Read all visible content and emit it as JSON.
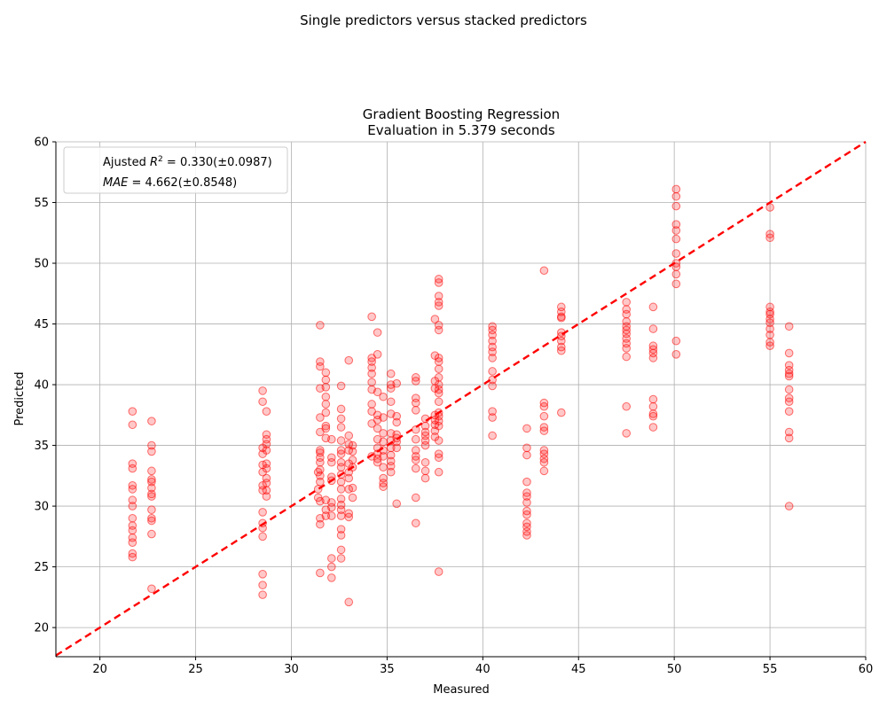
{
  "figure": {
    "suptitle": "Single predictors versus stacked predictors"
  },
  "chart_data": {
    "type": "scatter",
    "title_line1": "Gradient Boosting Regression",
    "title_line2": "Evaluation in 5.379 seconds",
    "xlabel": "Measured",
    "ylabel": "Predicted",
    "xlim": [
      17.7,
      60
    ],
    "ylim": [
      17.6,
      60
    ],
    "xticks": [
      20,
      25,
      30,
      35,
      40,
      45,
      50,
      55,
      60
    ],
    "yticks": [
      20,
      25,
      30,
      35,
      40,
      45,
      50,
      55,
      60
    ],
    "grid": true,
    "legend_position": "upper-left",
    "legend": {
      "line1_prefix": "Ajusted ",
      "line1_math": "R",
      "line1_sup": "2",
      "line1_rest": " = 0.330(±0.0987)",
      "line2_math": "MAE",
      "line2_rest": " = 4.662(±0.8548)"
    },
    "point_color": "#ff0000",
    "reference_line_color": "#ff0000",
    "reference_line": "y = x (dashed)",
    "points": [
      [
        21.7,
        37.8
      ],
      [
        21.7,
        36.7
      ],
      [
        21.7,
        33.5
      ],
      [
        21.7,
        33.1
      ],
      [
        21.7,
        31.7
      ],
      [
        21.7,
        31.4
      ],
      [
        21.7,
        30.5
      ],
      [
        21.7,
        30.0
      ],
      [
        21.7,
        29.0
      ],
      [
        21.7,
        28.4
      ],
      [
        21.7,
        28.0
      ],
      [
        21.7,
        27.4
      ],
      [
        21.7,
        27.0
      ],
      [
        21.7,
        26.1
      ],
      [
        21.7,
        25.8
      ],
      [
        22.7,
        37.0
      ],
      [
        22.7,
        35.0
      ],
      [
        22.7,
        34.5
      ],
      [
        22.7,
        32.9
      ],
      [
        22.7,
        32.2
      ],
      [
        22.7,
        32.0
      ],
      [
        22.7,
        31.5
      ],
      [
        22.7,
        31.0
      ],
      [
        22.7,
        30.8
      ],
      [
        22.7,
        29.7
      ],
      [
        22.7,
        29.0
      ],
      [
        22.7,
        28.8
      ],
      [
        22.7,
        27.7
      ],
      [
        22.7,
        23.2
      ],
      [
        28.5,
        39.5
      ],
      [
        28.5,
        38.6
      ],
      [
        28.5,
        34.8
      ],
      [
        28.5,
        34.3
      ],
      [
        28.5,
        33.4
      ],
      [
        28.5,
        32.8
      ],
      [
        28.5,
        31.7
      ],
      [
        28.5,
        31.3
      ],
      [
        28.5,
        29.5
      ],
      [
        28.5,
        28.6
      ],
      [
        28.5,
        28.2
      ],
      [
        28.5,
        27.5
      ],
      [
        28.5,
        24.4
      ],
      [
        28.5,
        23.5
      ],
      [
        28.5,
        22.7
      ],
      [
        28.7,
        37.8
      ],
      [
        28.7,
        35.9
      ],
      [
        28.7,
        35.5
      ],
      [
        28.7,
        35.1
      ],
      [
        28.7,
        34.6
      ],
      [
        28.7,
        33.5
      ],
      [
        28.7,
        33.1
      ],
      [
        28.7,
        32.3
      ],
      [
        28.7,
        31.9
      ],
      [
        28.7,
        31.3
      ],
      [
        28.7,
        30.8
      ],
      [
        31.4,
        32.8
      ],
      [
        31.4,
        31.4
      ],
      [
        31.4,
        30.7
      ],
      [
        31.5,
        44.9
      ],
      [
        31.5,
        41.9
      ],
      [
        31.5,
        41.5
      ],
      [
        31.5,
        39.7
      ],
      [
        31.5,
        37.3
      ],
      [
        31.5,
        36.1
      ],
      [
        31.5,
        34.6
      ],
      [
        31.5,
        34.4
      ],
      [
        31.5,
        34.0
      ],
      [
        31.5,
        33.6
      ],
      [
        31.5,
        33.0
      ],
      [
        31.5,
        32.5
      ],
      [
        31.5,
        32.0
      ],
      [
        31.5,
        30.4
      ],
      [
        31.5,
        29.0
      ],
      [
        31.5,
        28.5
      ],
      [
        31.5,
        24.5
      ],
      [
        31.8,
        41.0
      ],
      [
        31.8,
        40.4
      ],
      [
        31.8,
        39.8
      ],
      [
        31.8,
        39.0
      ],
      [
        31.8,
        38.4
      ],
      [
        31.8,
        37.7
      ],
      [
        31.8,
        36.6
      ],
      [
        31.8,
        36.4
      ],
      [
        31.8,
        35.6
      ],
      [
        31.8,
        30.5
      ],
      [
        31.8,
        29.7
      ],
      [
        31.8,
        29.2
      ],
      [
        32.1,
        35.5
      ],
      [
        32.1,
        34.0
      ],
      [
        32.1,
        33.6
      ],
      [
        32.1,
        32.4
      ],
      [
        32.1,
        32.1
      ],
      [
        32.1,
        30.3
      ],
      [
        32.1,
        29.9
      ],
      [
        32.1,
        29.2
      ],
      [
        32.1,
        25.7
      ],
      [
        32.1,
        25.0
      ],
      [
        32.1,
        24.1
      ],
      [
        32.6,
        39.9
      ],
      [
        32.6,
        38.0
      ],
      [
        32.6,
        37.2
      ],
      [
        32.6,
        36.5
      ],
      [
        32.6,
        35.4
      ],
      [
        32.6,
        34.6
      ],
      [
        32.6,
        34.3
      ],
      [
        32.6,
        33.6
      ],
      [
        32.6,
        33.2
      ],
      [
        32.6,
        32.6
      ],
      [
        32.6,
        32.0
      ],
      [
        32.6,
        31.4
      ],
      [
        32.6,
        30.6
      ],
      [
        32.6,
        30.1
      ],
      [
        32.6,
        29.7
      ],
      [
        32.6,
        29.2
      ],
      [
        32.6,
        28.1
      ],
      [
        32.6,
        27.6
      ],
      [
        32.6,
        26.4
      ],
      [
        32.6,
        25.7
      ],
      [
        33.0,
        42.0
      ],
      [
        33.0,
        35.8
      ],
      [
        33.0,
        35.1
      ],
      [
        33.0,
        34.6
      ],
      [
        33.0,
        33.5
      ],
      [
        33.0,
        32.8
      ],
      [
        33.0,
        32.3
      ],
      [
        33.0,
        31.4
      ],
      [
        33.0,
        29.4
      ],
      [
        33.0,
        29.1
      ],
      [
        33.0,
        22.1
      ],
      [
        33.2,
        35.0
      ],
      [
        33.2,
        34.5
      ],
      [
        33.2,
        33.8
      ],
      [
        33.2,
        33.2
      ],
      [
        33.2,
        31.5
      ],
      [
        33.2,
        30.7
      ],
      [
        34.2,
        45.6
      ],
      [
        34.2,
        42.2
      ],
      [
        34.2,
        41.9
      ],
      [
        34.2,
        41.4
      ],
      [
        34.2,
        40.9
      ],
      [
        34.2,
        40.2
      ],
      [
        34.2,
        39.6
      ],
      [
        34.2,
        38.4
      ],
      [
        34.2,
        37.8
      ],
      [
        34.2,
        36.8
      ],
      [
        34.2,
        34.1
      ],
      [
        34.5,
        44.3
      ],
      [
        34.5,
        42.5
      ],
      [
        34.5,
        39.4
      ],
      [
        34.5,
        37.5
      ],
      [
        34.5,
        37.1
      ],
      [
        34.5,
        36.4
      ],
      [
        34.5,
        35.5
      ],
      [
        34.5,
        34.8
      ],
      [
        34.5,
        34.3
      ],
      [
        34.5,
        33.9
      ],
      [
        34.5,
        33.6
      ],
      [
        34.8,
        39.0
      ],
      [
        34.8,
        37.3
      ],
      [
        34.8,
        36.0
      ],
      [
        34.8,
        35.3
      ],
      [
        34.8,
        34.6
      ],
      [
        34.8,
        34.1
      ],
      [
        34.8,
        33.2
      ],
      [
        34.8,
        32.3
      ],
      [
        34.8,
        31.9
      ],
      [
        34.8,
        31.6
      ],
      [
        35.2,
        40.9
      ],
      [
        35.2,
        40.0
      ],
      [
        35.2,
        39.7
      ],
      [
        35.2,
        38.6
      ],
      [
        35.2,
        37.6
      ],
      [
        35.2,
        36.0
      ],
      [
        35.2,
        35.4
      ],
      [
        35.2,
        34.8
      ],
      [
        35.2,
        34.2
      ],
      [
        35.2,
        33.7
      ],
      [
        35.2,
        33.3
      ],
      [
        35.2,
        32.8
      ],
      [
        35.5,
        40.1
      ],
      [
        35.5,
        37.4
      ],
      [
        35.5,
        36.9
      ],
      [
        35.5,
        35.9
      ],
      [
        35.5,
        35.6
      ],
      [
        35.5,
        35.3
      ],
      [
        35.5,
        34.8
      ],
      [
        35.5,
        30.2
      ],
      [
        36.5,
        40.6
      ],
      [
        36.5,
        40.3
      ],
      [
        36.5,
        38.9
      ],
      [
        36.5,
        38.5
      ],
      [
        36.5,
        37.9
      ],
      [
        36.5,
        36.3
      ],
      [
        36.5,
        35.5
      ],
      [
        36.5,
        34.6
      ],
      [
        36.5,
        34.1
      ],
      [
        36.5,
        33.8
      ],
      [
        36.5,
        33.1
      ],
      [
        36.5,
        30.7
      ],
      [
        36.5,
        28.6
      ],
      [
        37.0,
        37.2
      ],
      [
        37.0,
        36.6
      ],
      [
        37.0,
        36.1
      ],
      [
        37.0,
        35.8
      ],
      [
        37.0,
        35.4
      ],
      [
        37.0,
        35.0
      ],
      [
        37.0,
        33.6
      ],
      [
        37.0,
        32.9
      ],
      [
        37.0,
        32.3
      ],
      [
        37.5,
        45.4
      ],
      [
        37.5,
        42.4
      ],
      [
        37.5,
        40.3
      ],
      [
        37.5,
        39.7
      ],
      [
        37.5,
        37.5
      ],
      [
        37.5,
        37.1
      ],
      [
        37.5,
        36.7
      ],
      [
        37.5,
        36.2
      ],
      [
        37.5,
        35.7
      ],
      [
        37.7,
        48.7
      ],
      [
        37.7,
        48.4
      ],
      [
        37.7,
        47.3
      ],
      [
        37.7,
        46.8
      ],
      [
        37.7,
        46.5
      ],
      [
        37.7,
        44.9
      ],
      [
        37.7,
        44.5
      ],
      [
        37.7,
        42.2
      ],
      [
        37.7,
        41.9
      ],
      [
        37.7,
        41.3
      ],
      [
        37.7,
        40.6
      ],
      [
        37.7,
        40.0
      ],
      [
        37.7,
        39.6
      ],
      [
        37.7,
        39.3
      ],
      [
        37.7,
        38.6
      ],
      [
        37.7,
        37.7
      ],
      [
        37.7,
        37.4
      ],
      [
        37.7,
        37.0
      ],
      [
        37.7,
        36.6
      ],
      [
        37.7,
        35.4
      ],
      [
        37.7,
        34.3
      ],
      [
        37.7,
        34.0
      ],
      [
        37.7,
        32.8
      ],
      [
        37.7,
        24.6
      ],
      [
        40.5,
        44.8
      ],
      [
        40.5,
        44.5
      ],
      [
        40.5,
        44.1
      ],
      [
        40.5,
        43.6
      ],
      [
        40.5,
        43.1
      ],
      [
        40.5,
        42.7
      ],
      [
        40.5,
        42.2
      ],
      [
        40.5,
        41.1
      ],
      [
        40.5,
        40.4
      ],
      [
        40.5,
        39.9
      ],
      [
        40.5,
        37.8
      ],
      [
        40.5,
        37.3
      ],
      [
        40.5,
        35.8
      ],
      [
        42.3,
        36.4
      ],
      [
        42.3,
        34.8
      ],
      [
        42.3,
        34.2
      ],
      [
        42.3,
        32.0
      ],
      [
        42.3,
        31.1
      ],
      [
        42.3,
        30.8
      ],
      [
        42.3,
        30.3
      ],
      [
        42.3,
        29.6
      ],
      [
        42.3,
        29.3
      ],
      [
        42.3,
        28.6
      ],
      [
        42.3,
        28.3
      ],
      [
        42.3,
        27.9
      ],
      [
        42.3,
        27.6
      ],
      [
        43.2,
        49.4
      ],
      [
        43.2,
        38.5
      ],
      [
        43.2,
        38.2
      ],
      [
        43.2,
        37.4
      ],
      [
        43.2,
        36.5
      ],
      [
        43.2,
        36.2
      ],
      [
        43.2,
        34.6
      ],
      [
        43.2,
        34.3
      ],
      [
        43.2,
        33.9
      ],
      [
        43.2,
        33.6
      ],
      [
        43.2,
        32.9
      ],
      [
        44.1,
        46.4
      ],
      [
        44.1,
        46.0
      ],
      [
        44.1,
        45.6
      ],
      [
        44.1,
        45.5
      ],
      [
        44.1,
        44.3
      ],
      [
        44.1,
        44.0
      ],
      [
        44.1,
        43.6
      ],
      [
        44.1,
        43.1
      ],
      [
        44.1,
        42.8
      ],
      [
        44.1,
        37.7
      ],
      [
        47.5,
        46.8
      ],
      [
        47.5,
        46.2
      ],
      [
        47.5,
        45.8
      ],
      [
        47.5,
        45.2
      ],
      [
        47.5,
        44.8
      ],
      [
        47.5,
        44.5
      ],
      [
        47.5,
        44.2
      ],
      [
        47.5,
        43.8
      ],
      [
        47.5,
        43.4
      ],
      [
        47.5,
        43.0
      ],
      [
        47.5,
        42.3
      ],
      [
        47.5,
        38.2
      ],
      [
        47.5,
        36.0
      ],
      [
        48.9,
        46.4
      ],
      [
        48.9,
        44.6
      ],
      [
        48.9,
        43.2
      ],
      [
        48.9,
        42.9
      ],
      [
        48.9,
        42.6
      ],
      [
        48.9,
        42.2
      ],
      [
        48.9,
        38.8
      ],
      [
        48.9,
        38.2
      ],
      [
        48.9,
        37.6
      ],
      [
        48.9,
        37.4
      ],
      [
        48.9,
        36.5
      ],
      [
        50.1,
        56.1
      ],
      [
        50.1,
        55.5
      ],
      [
        50.1,
        54.7
      ],
      [
        50.1,
        53.2
      ],
      [
        50.1,
        52.7
      ],
      [
        50.1,
        52.0
      ],
      [
        50.1,
        50.8
      ],
      [
        50.1,
        50.0
      ],
      [
        50.1,
        49.7
      ],
      [
        50.1,
        49.1
      ],
      [
        50.1,
        48.3
      ],
      [
        50.1,
        43.6
      ],
      [
        50.1,
        42.5
      ],
      [
        55.0,
        54.6
      ],
      [
        55.0,
        52.4
      ],
      [
        55.0,
        52.1
      ],
      [
        55.0,
        46.4
      ],
      [
        55.0,
        46.0
      ],
      [
        55.0,
        45.8
      ],
      [
        55.0,
        45.4
      ],
      [
        55.0,
        45.1
      ],
      [
        55.0,
        44.6
      ],
      [
        55.0,
        44.1
      ],
      [
        55.0,
        43.5
      ],
      [
        55.0,
        43.2
      ],
      [
        56.0,
        44.8
      ],
      [
        56.0,
        42.6
      ],
      [
        56.0,
        41.6
      ],
      [
        56.0,
        41.2
      ],
      [
        56.0,
        40.9
      ],
      [
        56.0,
        40.7
      ],
      [
        56.0,
        39.6
      ],
      [
        56.0,
        38.9
      ],
      [
        56.0,
        38.6
      ],
      [
        56.0,
        37.8
      ],
      [
        56.0,
        36.1
      ],
      [
        56.0,
        35.6
      ],
      [
        56.0,
        30.0
      ]
    ]
  }
}
